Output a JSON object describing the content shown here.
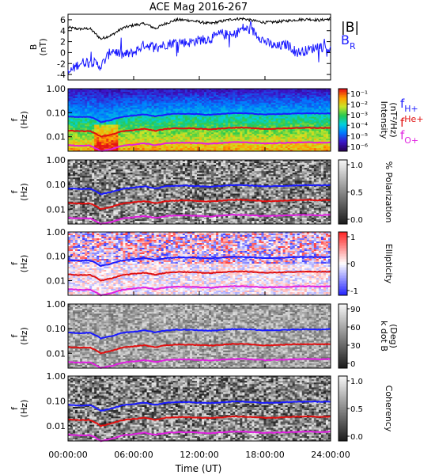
{
  "title": "ACE Mag 2016-267",
  "xlabel": "Time (UT)",
  "time_ticks": [
    "00:00:00",
    "06:00:00",
    "12:00:00",
    "18:00:00",
    "24:00:00"
  ],
  "colors": {
    "magnitude": "#000000",
    "radial": "#1a1aff",
    "h_plus": "#1a1aff",
    "he_plus": "#e01010",
    "o_plus": "#e020e0"
  },
  "legend_labels": {
    "magnitude": "|B|",
    "radial": "B",
    "radial_sub": "R",
    "h_main": "f",
    "h_sub": "H+",
    "he_main": "f",
    "he_sup": "He+",
    "o_main": "f",
    "o_sub": "O+"
  },
  "chart_data": [
    {
      "type": "line",
      "panel": "field",
      "ylabel_main": "B",
      "ylabel_sub": "(nT)",
      "ylim": [
        -5,
        7
      ],
      "y_ticks": [
        "6",
        "4",
        "2",
        "0",
        "-2",
        "-4"
      ],
      "x_hours": [
        0,
        1,
        2,
        3,
        4,
        5,
        6,
        7,
        8,
        9,
        10,
        11,
        12,
        13,
        14,
        15,
        16,
        17,
        18,
        19,
        20,
        21,
        22,
        23,
        24
      ],
      "series": [
        {
          "name": "|B|",
          "values": [
            4.6,
            4.3,
            4.4,
            2.5,
            3.2,
            4.5,
            5.0,
            5.3,
            4.4,
            5.4,
            6.0,
            5.9,
            5.6,
            5.3,
            5.7,
            6.1,
            6.2,
            5.8,
            5.5,
            5.6,
            5.8,
            6.0,
            6.1,
            5.9,
            6.2
          ]
        },
        {
          "name": "BR",
          "values": [
            -3.8,
            -2.0,
            -1.5,
            -2.5,
            0.5,
            -0.5,
            0.0,
            1.5,
            1.0,
            1.5,
            2.0,
            1.8,
            2.3,
            2.5,
            3.5,
            3.0,
            4.5,
            3.8,
            2.0,
            1.0,
            1.5,
            0.0,
            0.5,
            1.2,
            0.5
          ]
        }
      ]
    },
    {
      "type": "heatmap",
      "panel": "intensity",
      "ylabel_main": "f",
      "ylabel_sub": "(Hz)",
      "y_ticks": [
        "1.00",
        "0.10",
        "0.01"
      ],
      "colorbar_label_main": "Intensity",
      "colorbar_label_sub": "(nT²/Hz)",
      "colorbar_ticks": [
        "10⁻¹",
        "10⁻²",
        "10⁻³",
        "10⁻⁴",
        "10⁻⁵",
        "10⁻⁶"
      ],
      "colorscale": "rainbow",
      "crc_lines": true
    },
    {
      "type": "heatmap",
      "panel": "polarization",
      "ylabel_main": "f",
      "ylabel_sub": "(Hz)",
      "y_ticks": [
        "1.00",
        "0.10",
        "0.01"
      ],
      "colorbar_label_main": "% Polarization",
      "colorbar_label_sub": "",
      "colorbar_ticks": [
        "1.0",
        "0.5",
        "0.0"
      ],
      "colorscale": "gray",
      "crc_lines": true
    },
    {
      "type": "heatmap",
      "panel": "ellipticity",
      "ylabel_main": "f",
      "ylabel_sub": "(Hz)",
      "y_ticks": [
        "1.00",
        "0.10",
        "0.01"
      ],
      "colorbar_label_main": "Ellipticity",
      "colorbar_label_sub": "",
      "colorbar_ticks": [
        "1",
        "0",
        "-1"
      ],
      "colorscale": "bluewhitered",
      "crc_lines": true
    },
    {
      "type": "heatmap",
      "panel": "kdotb",
      "ylabel_main": "f",
      "ylabel_sub": "(Hz)",
      "y_ticks": [
        "1.00",
        "0.10",
        "0.01"
      ],
      "colorbar_label_main": "k dot B",
      "colorbar_label_sub": "(Deg)",
      "colorbar_ticks": [
        "90",
        "60",
        "30",
        "0"
      ],
      "colorscale": "grayr",
      "crc_lines": true
    },
    {
      "type": "heatmap",
      "panel": "coherency",
      "ylabel_main": "f",
      "ylabel_sub": "(Hz)",
      "y_ticks": [
        "1.00",
        "0.10",
        "0.01"
      ],
      "colorbar_label_main": "Coherency",
      "colorbar_label_sub": "",
      "colorbar_ticks": [
        "1.0",
        "0.5",
        "0.0"
      ],
      "colorscale": "gray",
      "crc_lines": true
    }
  ],
  "crc_freq_hz": {
    "x_hours": [
      0,
      1,
      2,
      3,
      4,
      5,
      6,
      7,
      8,
      9,
      10,
      11,
      12,
      13,
      14,
      15,
      16,
      17,
      18,
      19,
      20,
      21,
      22,
      23,
      24
    ],
    "h_plus": [
      0.07,
      0.066,
      0.068,
      0.04,
      0.05,
      0.068,
      0.075,
      0.085,
      0.07,
      0.085,
      0.09,
      0.09,
      0.086,
      0.082,
      0.088,
      0.095,
      0.095,
      0.09,
      0.084,
      0.086,
      0.09,
      0.093,
      0.095,
      0.092,
      0.095
    ],
    "he_plus": [
      0.018,
      0.017,
      0.0173,
      0.01,
      0.0125,
      0.017,
      0.019,
      0.0213,
      0.0175,
      0.0213,
      0.0225,
      0.0225,
      0.0215,
      0.0205,
      0.022,
      0.0238,
      0.0238,
      0.0225,
      0.021,
      0.0215,
      0.0225,
      0.0233,
      0.0238,
      0.023,
      0.0238
    ],
    "o_plus": [
      0.0045,
      0.0042,
      0.0043,
      0.0025,
      0.0031,
      0.0042,
      0.0047,
      0.0053,
      0.0044,
      0.0053,
      0.0056,
      0.0056,
      0.0054,
      0.0051,
      0.0055,
      0.0059,
      0.0059,
      0.0056,
      0.0053,
      0.0054,
      0.0056,
      0.0058,
      0.0059,
      0.0057,
      0.0059
    ]
  }
}
